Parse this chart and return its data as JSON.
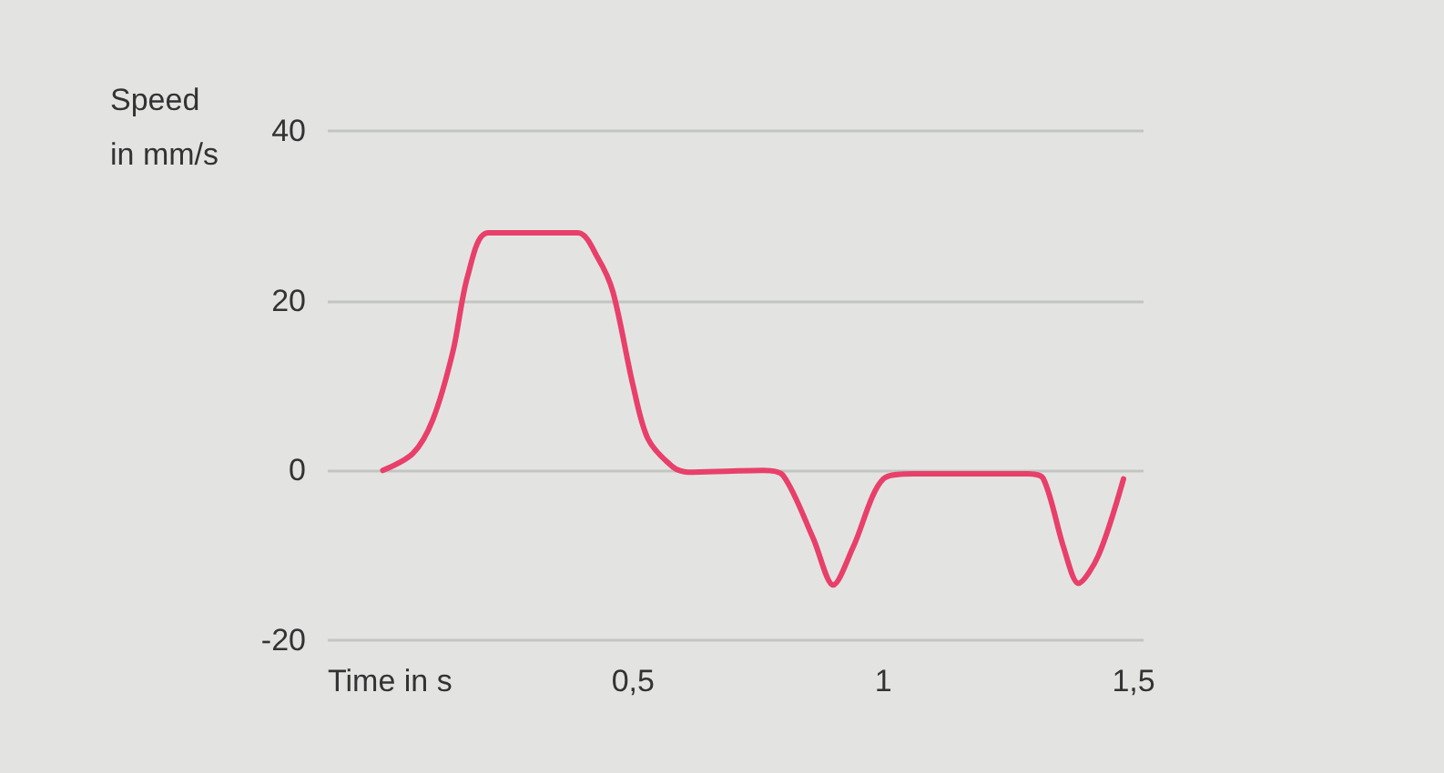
{
  "chart_data": {
    "type": "line",
    "xlabel": "Time in s",
    "ylabel": "Speed\nin mm/s",
    "x": [
      0,
      0.06,
      0.1,
      0.14,
      0.17,
      0.21,
      0.39,
      0.43,
      0.46,
      0.5,
      0.53,
      0.58,
      0.61,
      0.76,
      0.8,
      0.86,
      0.9,
      0.94,
      1.0,
      1.06,
      1.29,
      1.32,
      1.36,
      1.39,
      1.43,
      1.48
    ],
    "series": [
      {
        "color": "#e8406a",
        "values": [
          0,
          2,
          6,
          14,
          23,
          28,
          28,
          25,
          21,
          10,
          3.7,
          0.4,
          -0.2,
          0,
          -0.6,
          -8,
          -13.5,
          -9,
          -1,
          -0.4,
          -0.4,
          -1,
          -9,
          -13.3,
          -10,
          -1
        ]
      }
    ],
    "xlim": [
      -0.11,
      1.52
    ],
    "xticks": [
      {
        "value": 0.5,
        "label": "0,5"
      },
      1,
      {
        "value": 1.5,
        "label": "1,5"
      }
    ],
    "ylim": [
      -20,
      40
    ],
    "yticks": [
      -20,
      0,
      20,
      40
    ],
    "grid": "y",
    "marker": "none",
    "line_style": "solid"
  }
}
